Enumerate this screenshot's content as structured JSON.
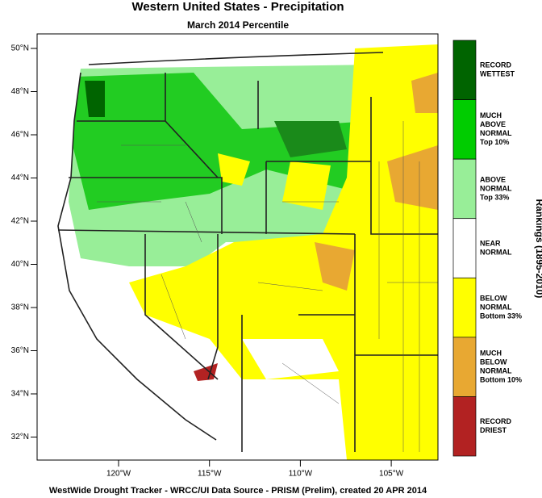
{
  "header": {
    "title": "Western United States - Precipitation",
    "subtitle": "March 2014 Percentile"
  },
  "map": {
    "lat_labels": [
      "50°N",
      "48°N",
      "46°N",
      "44°N",
      "42°N",
      "40°N",
      "38°N",
      "36°N",
      "34°N",
      "32°N"
    ],
    "lon_labels": [
      "120°W",
      "115°W",
      "110°W",
      "105°W"
    ]
  },
  "legend": {
    "title": "Rankings (1895-2010)",
    "items": [
      {
        "lines": [
          "RECORD",
          "WETTEST"
        ],
        "color": "#006400"
      },
      {
        "lines": [
          "MUCH",
          "ABOVE",
          "NORMAL",
          "Top 10%"
        ],
        "color": "#00cc00"
      },
      {
        "lines": [
          "ABOVE",
          "NORMAL",
          "Top 33%"
        ],
        "color": "#98ee98"
      },
      {
        "lines": [
          "NEAR",
          "NORMAL"
        ],
        "color": "#ffffff"
      },
      {
        "lines": [
          "BELOW",
          "NORMAL",
          "Bottom 33%"
        ],
        "color": "#ffff00"
      },
      {
        "lines": [
          "MUCH",
          "BELOW",
          "NORMAL",
          "Bottom 10%"
        ],
        "color": "#e8a832"
      },
      {
        "lines": [
          "RECORD",
          "DRIEST"
        ],
        "color": "#b22222"
      }
    ]
  },
  "footer": "WestWide Drought Tracker - WRCC/UI  Data Source - PRISM (Prelim), created 20 APR 2014"
}
